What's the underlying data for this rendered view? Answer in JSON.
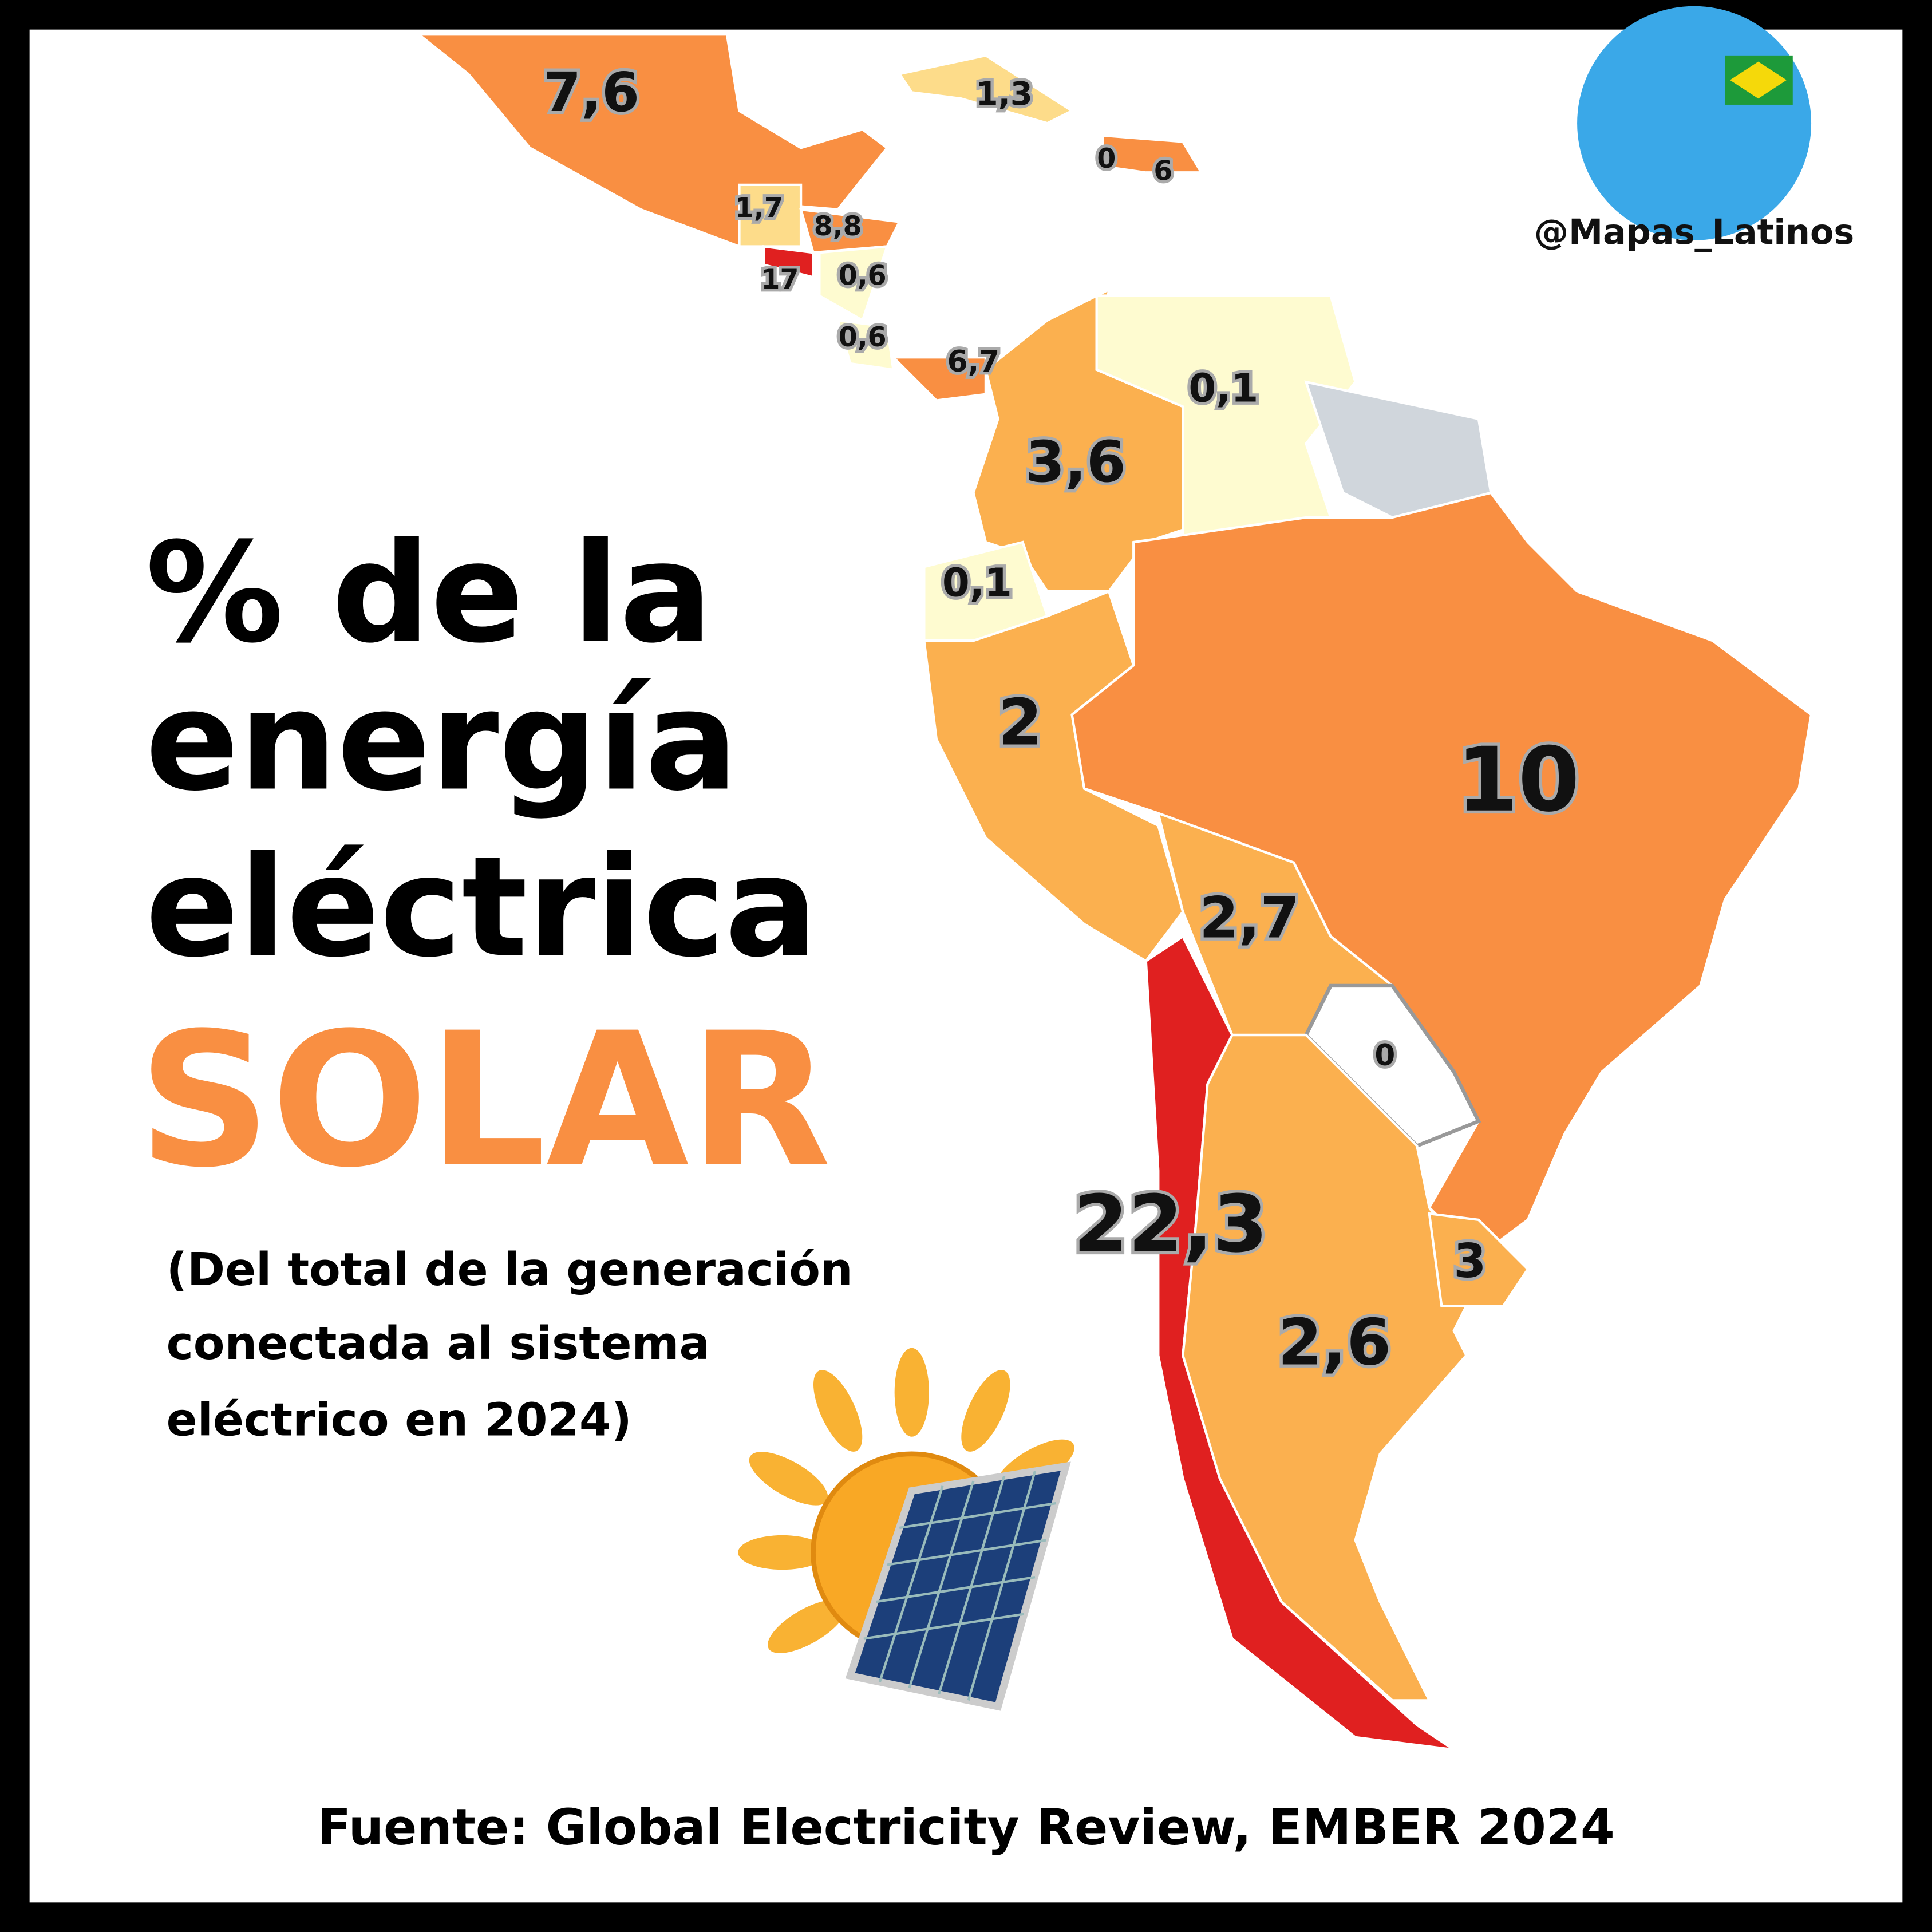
{
  "title": {
    "lines": [
      "% de la",
      "energía",
      "eléctrica"
    ],
    "highlight": "SOLAR"
  },
  "subtitle": {
    "lines": [
      "(Del total de la generación",
      "conectada al sistema",
      "eléctrico en 2024)"
    ]
  },
  "source": "Fuente: Global Electricity Review, EMBER 2024",
  "handle": "@Mapas_Latinos",
  "map": {
    "labels": [
      "7,6",
      "1,3",
      "0",
      "6",
      "1,7",
      "8,8",
      "17",
      "0,6",
      "0,6",
      "6,7",
      "0,1",
      "3,6",
      "0,1",
      "2",
      "10",
      "2,7",
      "0",
      "22,3",
      "3",
      "2,6"
    ]
  }
}
